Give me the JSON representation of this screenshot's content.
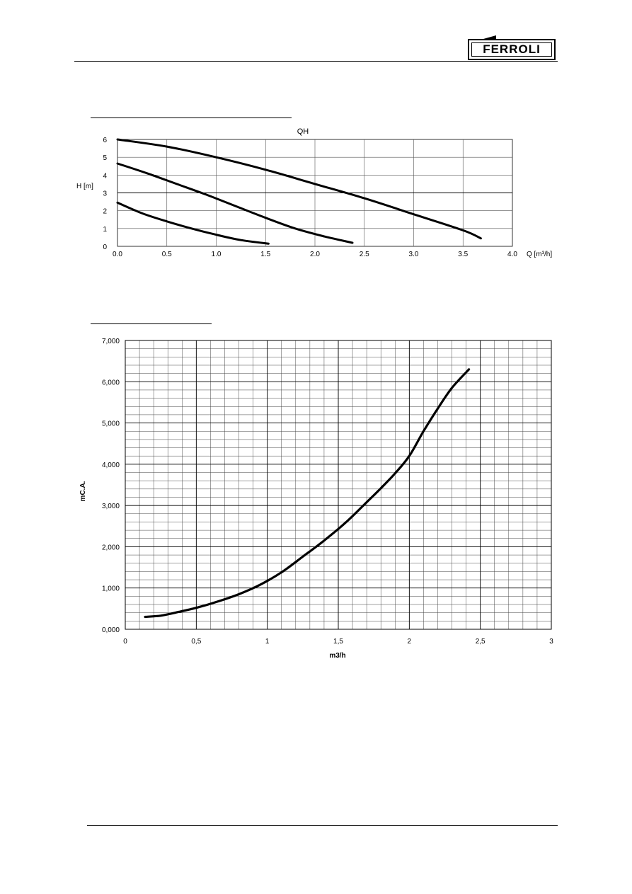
{
  "header": {
    "brand": "FERROLI"
  },
  "chart_data": [
    {
      "type": "line",
      "title": "QH",
      "xlabel": "Q [m³/h]",
      "ylabel": "H [m]",
      "xlim": [
        0,
        4
      ],
      "ylim": [
        0,
        6
      ],
      "grid": true,
      "x_ticks": [
        "0.0",
        "0.5",
        "1.0",
        "1.5",
        "2.0",
        "2.5",
        "3.0",
        "3.5",
        "4.0"
      ],
      "y_ticks": [
        "0",
        "1",
        "2",
        "3",
        "4",
        "5",
        "6"
      ],
      "series": [
        {
          "points": [
            [
              0,
              6.0
            ],
            [
              0.5,
              5.6
            ],
            [
              1.0,
              5.0
            ],
            [
              1.5,
              4.3
            ],
            [
              2.0,
              3.5
            ],
            [
              2.5,
              2.7
            ],
            [
              3.0,
              1.8
            ],
            [
              3.5,
              0.9
            ],
            [
              3.68,
              0.45
            ]
          ]
        },
        {
          "points": [
            [
              0,
              4.65
            ],
            [
              0.3,
              4.1
            ],
            [
              0.6,
              3.5
            ],
            [
              0.9,
              2.9
            ],
            [
              1.2,
              2.25
            ],
            [
              1.5,
              1.6
            ],
            [
              1.8,
              1.0
            ],
            [
              2.1,
              0.55
            ],
            [
              2.38,
              0.2
            ]
          ]
        },
        {
          "points": [
            [
              0,
              2.45
            ],
            [
              0.25,
              1.85
            ],
            [
              0.5,
              1.4
            ],
            [
              0.75,
              1.0
            ],
            [
              1.0,
              0.65
            ],
            [
              1.25,
              0.35
            ],
            [
              1.53,
              0.15
            ]
          ]
        }
      ]
    },
    {
      "type": "line",
      "title": "",
      "xlabel": "m3/h",
      "ylabel": "mC.A.",
      "xlim": [
        0,
        3
      ],
      "ylim": [
        0,
        7
      ],
      "grid": true,
      "x_ticks": [
        "0",
        "0,5",
        "1",
        "1,5",
        "2",
        "2,5",
        "3"
      ],
      "y_ticks": [
        "0,000",
        "1,000",
        "2,000",
        "3,000",
        "4,000",
        "5,000",
        "6,000",
        "7,000"
      ],
      "series": [
        {
          "points": [
            [
              0.14,
              0.3
            ],
            [
              0.25,
              0.33
            ],
            [
              0.35,
              0.4
            ],
            [
              0.5,
              0.52
            ],
            [
              0.65,
              0.67
            ],
            [
              0.8,
              0.85
            ],
            [
              0.95,
              1.08
            ],
            [
              1.1,
              1.38
            ],
            [
              1.25,
              1.76
            ],
            [
              1.4,
              2.15
            ],
            [
              1.55,
              2.58
            ],
            [
              1.7,
              3.08
            ],
            [
              1.8,
              3.42
            ],
            [
              1.9,
              3.78
            ],
            [
              2.0,
              4.2
            ],
            [
              2.1,
              4.8
            ],
            [
              2.2,
              5.35
            ],
            [
              2.3,
              5.85
            ],
            [
              2.42,
              6.3
            ]
          ]
        }
      ]
    }
  ]
}
